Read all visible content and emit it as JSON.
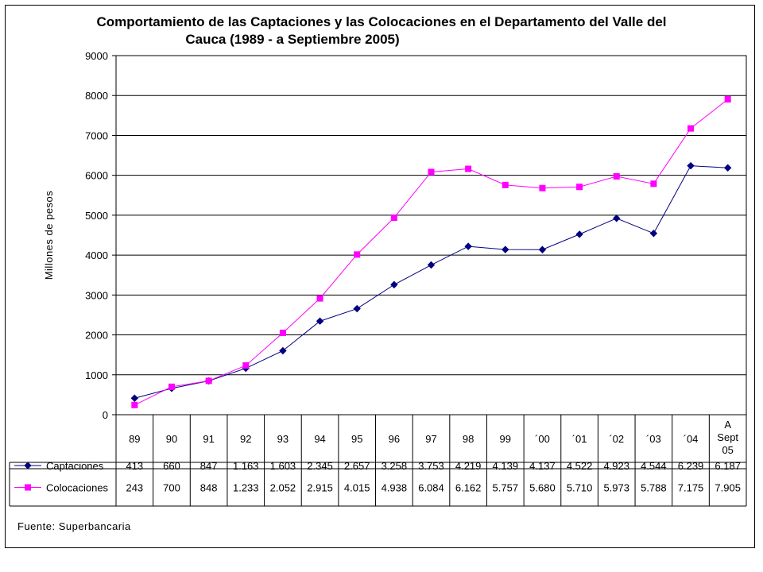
{
  "chart_data": {
    "type": "line",
    "title_lines": [
      "Comportamiento de las Captaciones y las Colocaciones en el Departamento del Valle del",
      "Cauca (1989 - a Septiembre 2005)"
    ],
    "ylabel": "Millones de pesos",
    "ylim": [
      0,
      9000
    ],
    "yticks": [
      "0",
      "1000",
      "2000",
      "3000",
      "4000",
      "5000",
      "6000",
      "7000",
      "8000",
      "9000"
    ],
    "categories": [
      [
        "89"
      ],
      [
        "90"
      ],
      [
        "91"
      ],
      [
        "92"
      ],
      [
        "93"
      ],
      [
        "94"
      ],
      [
        "95"
      ],
      [
        "96"
      ],
      [
        "97"
      ],
      [
        "98"
      ],
      [
        "99"
      ],
      [
        "´00"
      ],
      [
        "´01"
      ],
      [
        "´02"
      ],
      [
        "´03"
      ],
      [
        "´04"
      ],
      [
        "A",
        "Sept",
        "05"
      ]
    ],
    "grid": true,
    "legend": "data-table",
    "series": [
      {
        "name": "Captaciones",
        "color": "#000080",
        "marker": "diamond",
        "values": [
          413,
          660,
          847,
          1163,
          1603,
          2345,
          2657,
          3258,
          3753,
          4219,
          4139,
          4137,
          4522,
          4923,
          4544,
          6239,
          6187
        ],
        "labels": [
          "413",
          "660",
          "847",
          "1.163",
          "1.603",
          "2.345",
          "2.657",
          "3.258",
          "3.753",
          "4.219",
          "4.139",
          "4.137",
          "4.522",
          "4.923",
          "4.544",
          "6.239",
          "6.187"
        ]
      },
      {
        "name": "Colocaciones",
        "color": "#ff00ff",
        "marker": "square",
        "values": [
          243,
          700,
          848,
          1233,
          2052,
          2915,
          4015,
          4938,
          6084,
          6162,
          5757,
          5680,
          5710,
          5973,
          5788,
          7175,
          7905
        ],
        "labels": [
          "243",
          "700",
          "848",
          "1.233",
          "2.052",
          "2.915",
          "4.015",
          "4.938",
          "6.084",
          "6.162",
          "5.757",
          "5.680",
          "5.710",
          "5.973",
          "5.788",
          "7.175",
          "7.905"
        ]
      }
    ],
    "source": "Fuente:  Superbancaria"
  }
}
